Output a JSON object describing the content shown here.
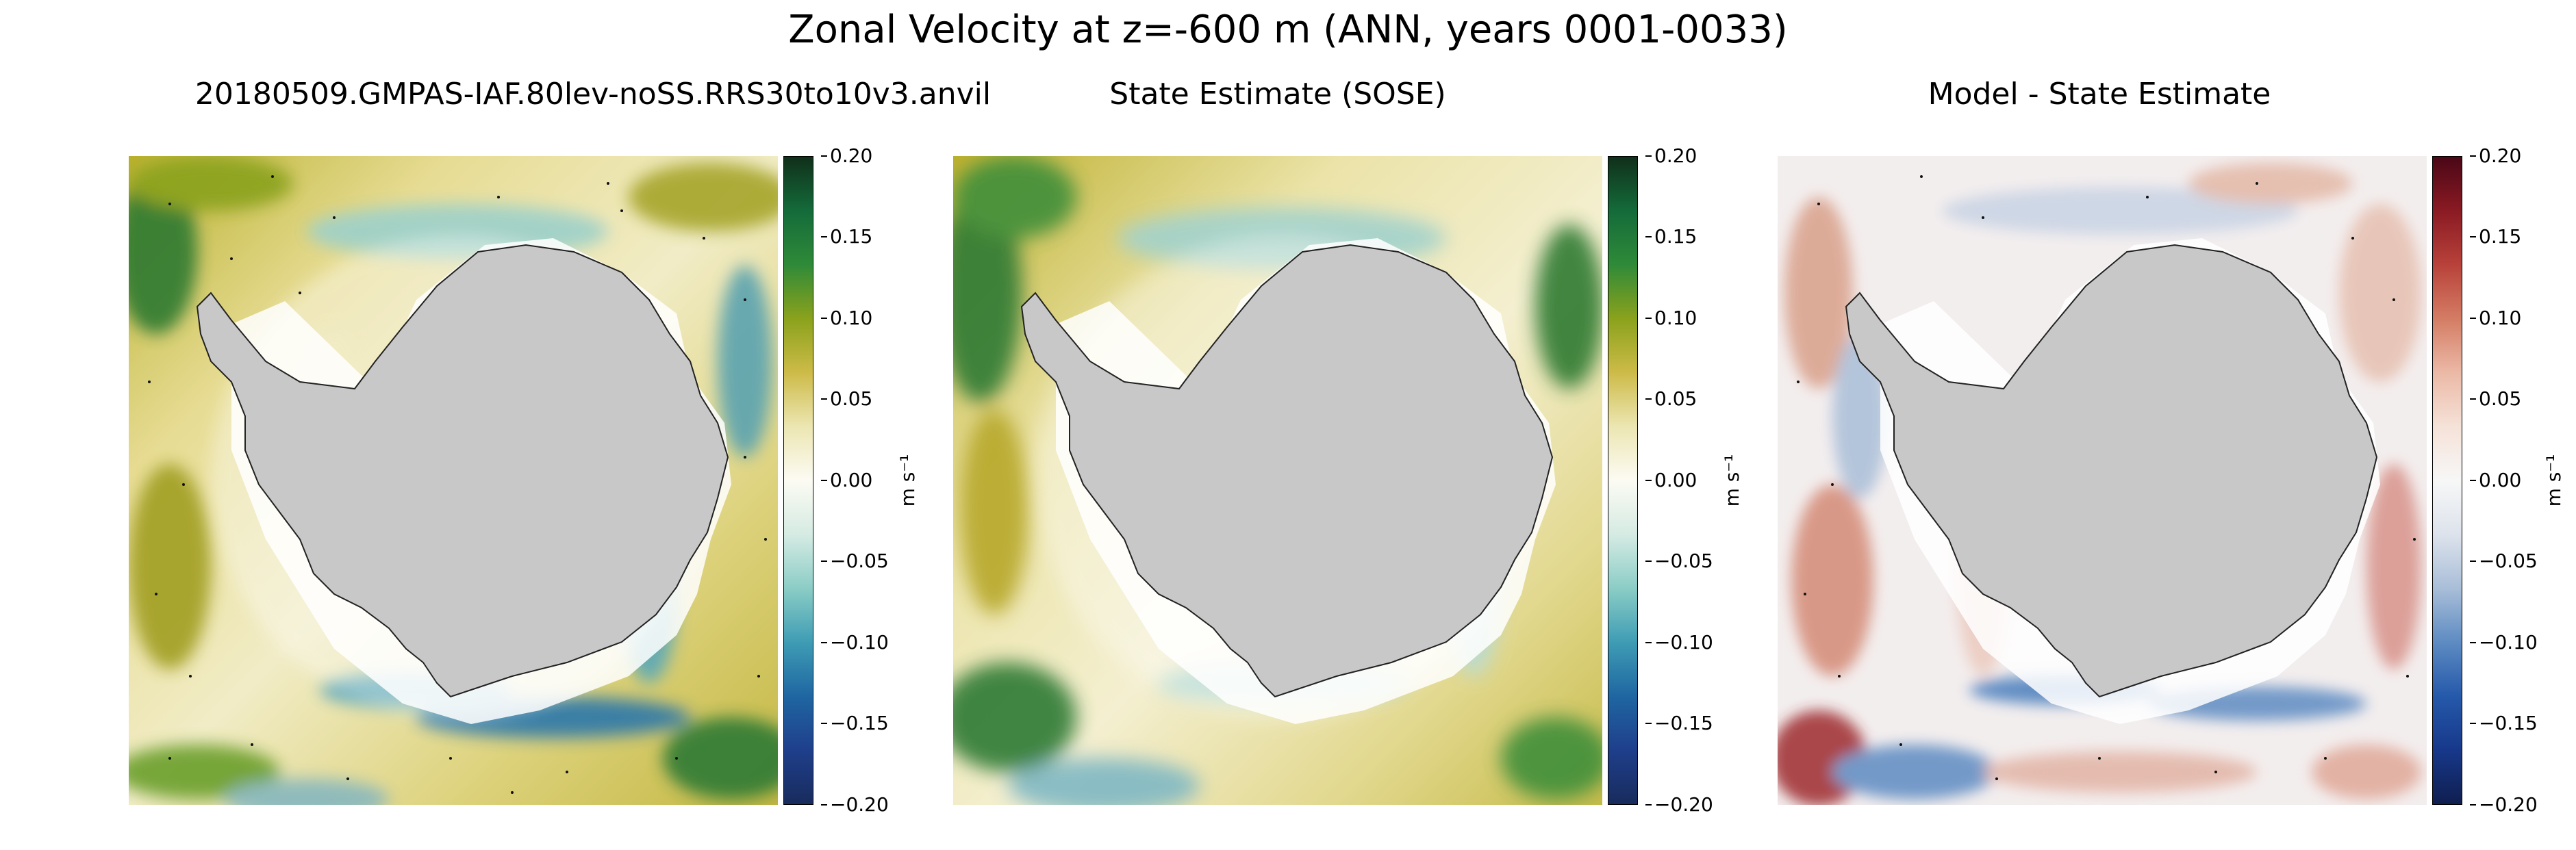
{
  "figure_title": "Zonal Velocity at z=-600 m (ANN, years 0001-0033)",
  "panels": [
    {
      "title": "20180509.GMPAS-IAF.80lev-noSS.RRS30to10v3.anvil",
      "colormap": "green-yellow-blue (gist_earth-like)",
      "colorbar": {
        "ticks": [
          "0.20",
          "0.15",
          "0.10",
          "0.05",
          "0.00",
          "−0.05",
          "−0.10",
          "−0.15",
          "−0.20"
        ],
        "label": "m s⁻¹",
        "colors": [
          "#102f1a",
          "#146b3a",
          "#2f8a38",
          "#8aa21c",
          "#cdbb48",
          "#ece6b2",
          "#fcfbf3",
          "#d5ebe3",
          "#8bcdc6",
          "#3e9cb4",
          "#1f66a2",
          "#1f3f8c",
          "#182b5c"
        ]
      }
    },
    {
      "title": "State Estimate (SOSE)",
      "colormap": "green-yellow-blue (gist_earth-like)",
      "colorbar": {
        "ticks": [
          "0.20",
          "0.15",
          "0.10",
          "0.05",
          "0.00",
          "−0.05",
          "−0.10",
          "−0.15",
          "−0.20"
        ],
        "label": "m s⁻¹",
        "colors": [
          "#102f1a",
          "#146b3a",
          "#2f8a38",
          "#8aa21c",
          "#cdbb48",
          "#ece6b2",
          "#fcfbf3",
          "#d5ebe3",
          "#8bcdc6",
          "#3e9cb4",
          "#1f66a2",
          "#1f3f8c",
          "#182b5c"
        ]
      }
    },
    {
      "title": "Model - State Estimate",
      "colormap": "red-white-blue (RdBu_r-like)",
      "colorbar": {
        "ticks": [
          "0.20",
          "0.15",
          "0.10",
          "0.05",
          "0.00",
          "−0.05",
          "−0.10",
          "−0.15",
          "−0.20"
        ],
        "label": "m s⁻¹",
        "colors": [
          "#4a0716",
          "#8a1a23",
          "#b8423a",
          "#d47c64",
          "#ebb9a6",
          "#f5e2d8",
          "#f7f7f7",
          "#dde3ec",
          "#a9bed8",
          "#5d8bc2",
          "#2559aa",
          "#17388a",
          "#0f1e4f"
        ]
      }
    }
  ],
  "map": {
    "projection": "south polar stereographic",
    "land_color": "#c8c8c8",
    "coastline_color": "#222222",
    "missing_color": "#ffffff"
  }
}
